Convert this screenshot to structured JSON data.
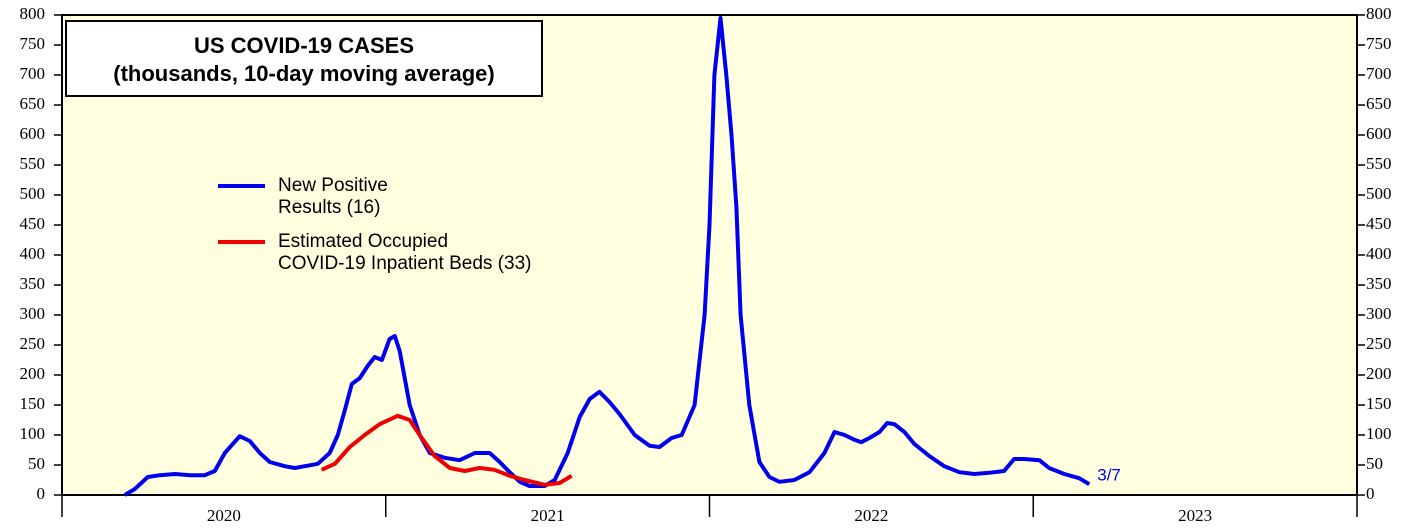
{
  "chart_data": {
    "type": "line",
    "title": "US COVID-19 CASES",
    "subtitle": "(thousands, 10-day moving average)",
    "categories": [
      "2020",
      "2021",
      "2022",
      "2023"
    ],
    "xlim": [
      2020,
      2024
    ],
    "xticks": [
      2020,
      2021,
      2022,
      2023,
      2024
    ],
    "ylim": [
      0,
      800
    ],
    "yticks": [
      0,
      50,
      100,
      150,
      200,
      250,
      300,
      350,
      400,
      450,
      500,
      550,
      600,
      650,
      700,
      750,
      800
    ],
    "annotation": "3/7",
    "series": [
      {
        "name": "New Positive\nResults (16)",
        "color": "#0000ee",
        "x": [
          2020.194,
          2020.225,
          2020.265,
          2020.302,
          2020.349,
          2020.395,
          2020.441,
          2020.472,
          2020.503,
          2020.549,
          2020.58,
          2020.611,
          2020.642,
          2020.688,
          2020.719,
          2020.75,
          2020.79,
          2020.827,
          2020.852,
          2020.873,
          2020.895,
          2020.92,
          2020.944,
          2020.966,
          2020.988,
          2021.012,
          2021.028,
          2021.043,
          2021.074,
          2021.105,
          2021.136,
          2021.182,
          2021.228,
          2021.275,
          2021.321,
          2021.352,
          2021.383,
          2021.414,
          2021.444,
          2021.491,
          2021.522,
          2021.562,
          2021.599,
          2021.63,
          2021.66,
          2021.691,
          2021.722,
          2021.769,
          2021.815,
          2021.846,
          2021.883,
          2021.914,
          2021.954,
          2021.985,
          2022.0,
          2022.015,
          2022.034,
          2022.052,
          2022.068,
          2022.083,
          2022.096,
          2022.123,
          2022.154,
          2022.185,
          2022.216,
          2022.262,
          2022.309,
          2022.355,
          2022.386,
          2022.417,
          2022.448,
          2022.469,
          2022.494,
          2022.525,
          2022.549,
          2022.571,
          2022.602,
          2022.633,
          2022.679,
          2022.725,
          2022.772,
          2022.818,
          2022.864,
          2022.91,
          2022.941,
          2022.972,
          2023.019,
          2023.049,
          2023.096,
          2023.142,
          2023.173
        ],
        "values": [
          0,
          10,
          30,
          33,
          35,
          33,
          33,
          40,
          70,
          98,
          90,
          70,
          55,
          48,
          45,
          48,
          52,
          70,
          100,
          140,
          185,
          195,
          215,
          230,
          225,
          260,
          265,
          240,
          150,
          100,
          70,
          62,
          58,
          70,
          70,
          55,
          38,
          22,
          15,
          15,
          25,
          70,
          130,
          160,
          172,
          155,
          135,
          100,
          82,
          80,
          95,
          100,
          150,
          300,
          450,
          700,
          795,
          700,
          600,
          480,
          300,
          150,
          55,
          30,
          22,
          25,
          38,
          70,
          105,
          100,
          92,
          88,
          95,
          105,
          120,
          118,
          105,
          85,
          65,
          48,
          38,
          35,
          37,
          40,
          60,
          60,
          58,
          45,
          35,
          28,
          18
        ]
      },
      {
        "name": "Estimated Occupied\nCOVID-19 Inpatient Beds (33)",
        "color": "#ee0000",
        "x": [
          2020.802,
          2020.843,
          2020.889,
          2020.935,
          2020.981,
          2021.037,
          2021.074,
          2021.105,
          2021.151,
          2021.198,
          2021.244,
          2021.29,
          2021.336,
          2021.383,
          2021.429,
          2021.491,
          2021.537,
          2021.574
        ],
        "values": [
          42,
          52,
          80,
          100,
          118,
          132,
          125,
          100,
          65,
          45,
          40,
          45,
          42,
          32,
          25,
          17,
          20,
          32
        ]
      }
    ]
  }
}
